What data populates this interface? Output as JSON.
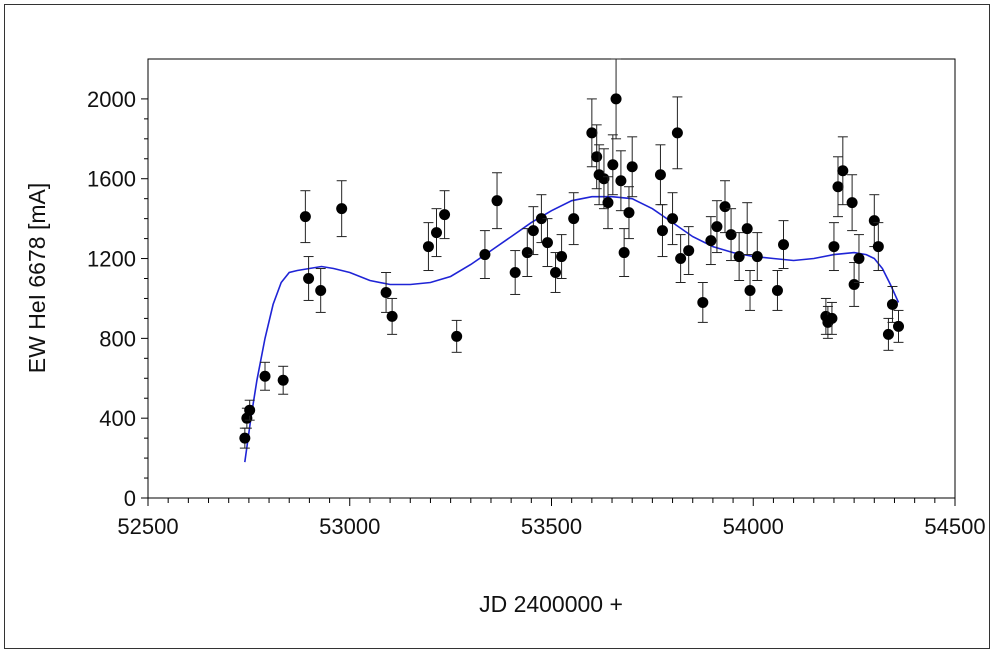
{
  "chart_data": {
    "type": "scatter",
    "title": "",
    "xlabel": "JD 2400000 +",
    "ylabel": "EW HeI 6678 [mA]",
    "xlim": [
      52500,
      54500
    ],
    "ylim": [
      0,
      2200
    ],
    "xticks": [
      52500,
      53000,
      53500,
      54000,
      54500
    ],
    "yticks": [
      0,
      400,
      800,
      1200,
      1600,
      2000
    ],
    "grid": false,
    "legend": "none",
    "colors": {
      "points": "#000000",
      "fit": "#1f24d6",
      "axes": "#000000"
    },
    "series": [
      {
        "type": "scatter",
        "x": [
          52740,
          52745,
          52752,
          52790,
          52835,
          52890,
          52898,
          52928,
          52980,
          53090,
          53105,
          53195,
          53215,
          53235,
          53265,
          53335,
          53365,
          53410,
          53440,
          53455,
          53475,
          53490,
          53510,
          53525,
          53555,
          53600,
          53612,
          53618,
          53630,
          53640,
          53652,
          53660,
          53672,
          53680,
          53692,
          53700,
          53770,
          53775,
          53800,
          53812,
          53820,
          53840,
          53875,
          53895,
          53910,
          53930,
          53945,
          53965,
          53985,
          53992,
          54010,
          54060,
          54075,
          54180,
          54185,
          54195,
          54200,
          54210,
          54222,
          54245,
          54250,
          54262,
          54300,
          54310,
          54335,
          54345,
          54360
        ],
        "y": [
          300,
          400,
          440,
          610,
          590,
          1410,
          1100,
          1040,
          1450,
          1030,
          910,
          1260,
          1330,
          1420,
          810,
          1220,
          1490,
          1130,
          1230,
          1340,
          1400,
          1280,
          1130,
          1210,
          1400,
          1830,
          1710,
          1620,
          1600,
          1480,
          1670,
          2000,
          1590,
          1230,
          1430,
          1660,
          1620,
          1340,
          1400,
          1830,
          1200,
          1240,
          980,
          1290,
          1360,
          1460,
          1320,
          1210,
          1350,
          1040,
          1210,
          1040,
          1270,
          910,
          880,
          900,
          1260,
          1560,
          1640,
          1480,
          1070,
          1200,
          1390,
          1260,
          820,
          970,
          860
        ],
        "err": [
          50,
          50,
          50,
          70,
          70,
          130,
          110,
          110,
          140,
          100,
          90,
          120,
          120,
          120,
          80,
          120,
          140,
          110,
          120,
          120,
          120,
          120,
          100,
          110,
          130,
          170,
          160,
          150,
          150,
          130,
          150,
          200,
          150,
          120,
          130,
          150,
          150,
          130,
          130,
          180,
          120,
          120,
          100,
          120,
          130,
          130,
          130,
          120,
          130,
          100,
          120,
          100,
          120,
          90,
          80,
          80,
          120,
          150,
          170,
          140,
          110,
          120,
          130,
          120,
          80,
          90,
          80
        ]
      },
      {
        "type": "line",
        "x": [
          52740,
          52755,
          52770,
          52790,
          52810,
          52830,
          52850,
          52870,
          52900,
          52930,
          52960,
          53000,
          53050,
          53100,
          53150,
          53200,
          53250,
          53300,
          53350,
          53400,
          53450,
          53500,
          53550,
          53600,
          53650,
          53700,
          53750,
          53800,
          53850,
          53900,
          53950,
          54000,
          54050,
          54100,
          54150,
          54200,
          54250,
          54280,
          54300,
          54320,
          54340,
          54360
        ],
        "y": [
          180,
          400,
          590,
          800,
          970,
          1080,
          1130,
          1140,
          1150,
          1160,
          1150,
          1130,
          1090,
          1070,
          1070,
          1080,
          1110,
          1170,
          1240,
          1310,
          1380,
          1440,
          1490,
          1510,
          1510,
          1500,
          1450,
          1380,
          1310,
          1260,
          1230,
          1210,
          1200,
          1190,
          1200,
          1220,
          1230,
          1220,
          1200,
          1150,
          1070,
          980
        ]
      }
    ]
  }
}
